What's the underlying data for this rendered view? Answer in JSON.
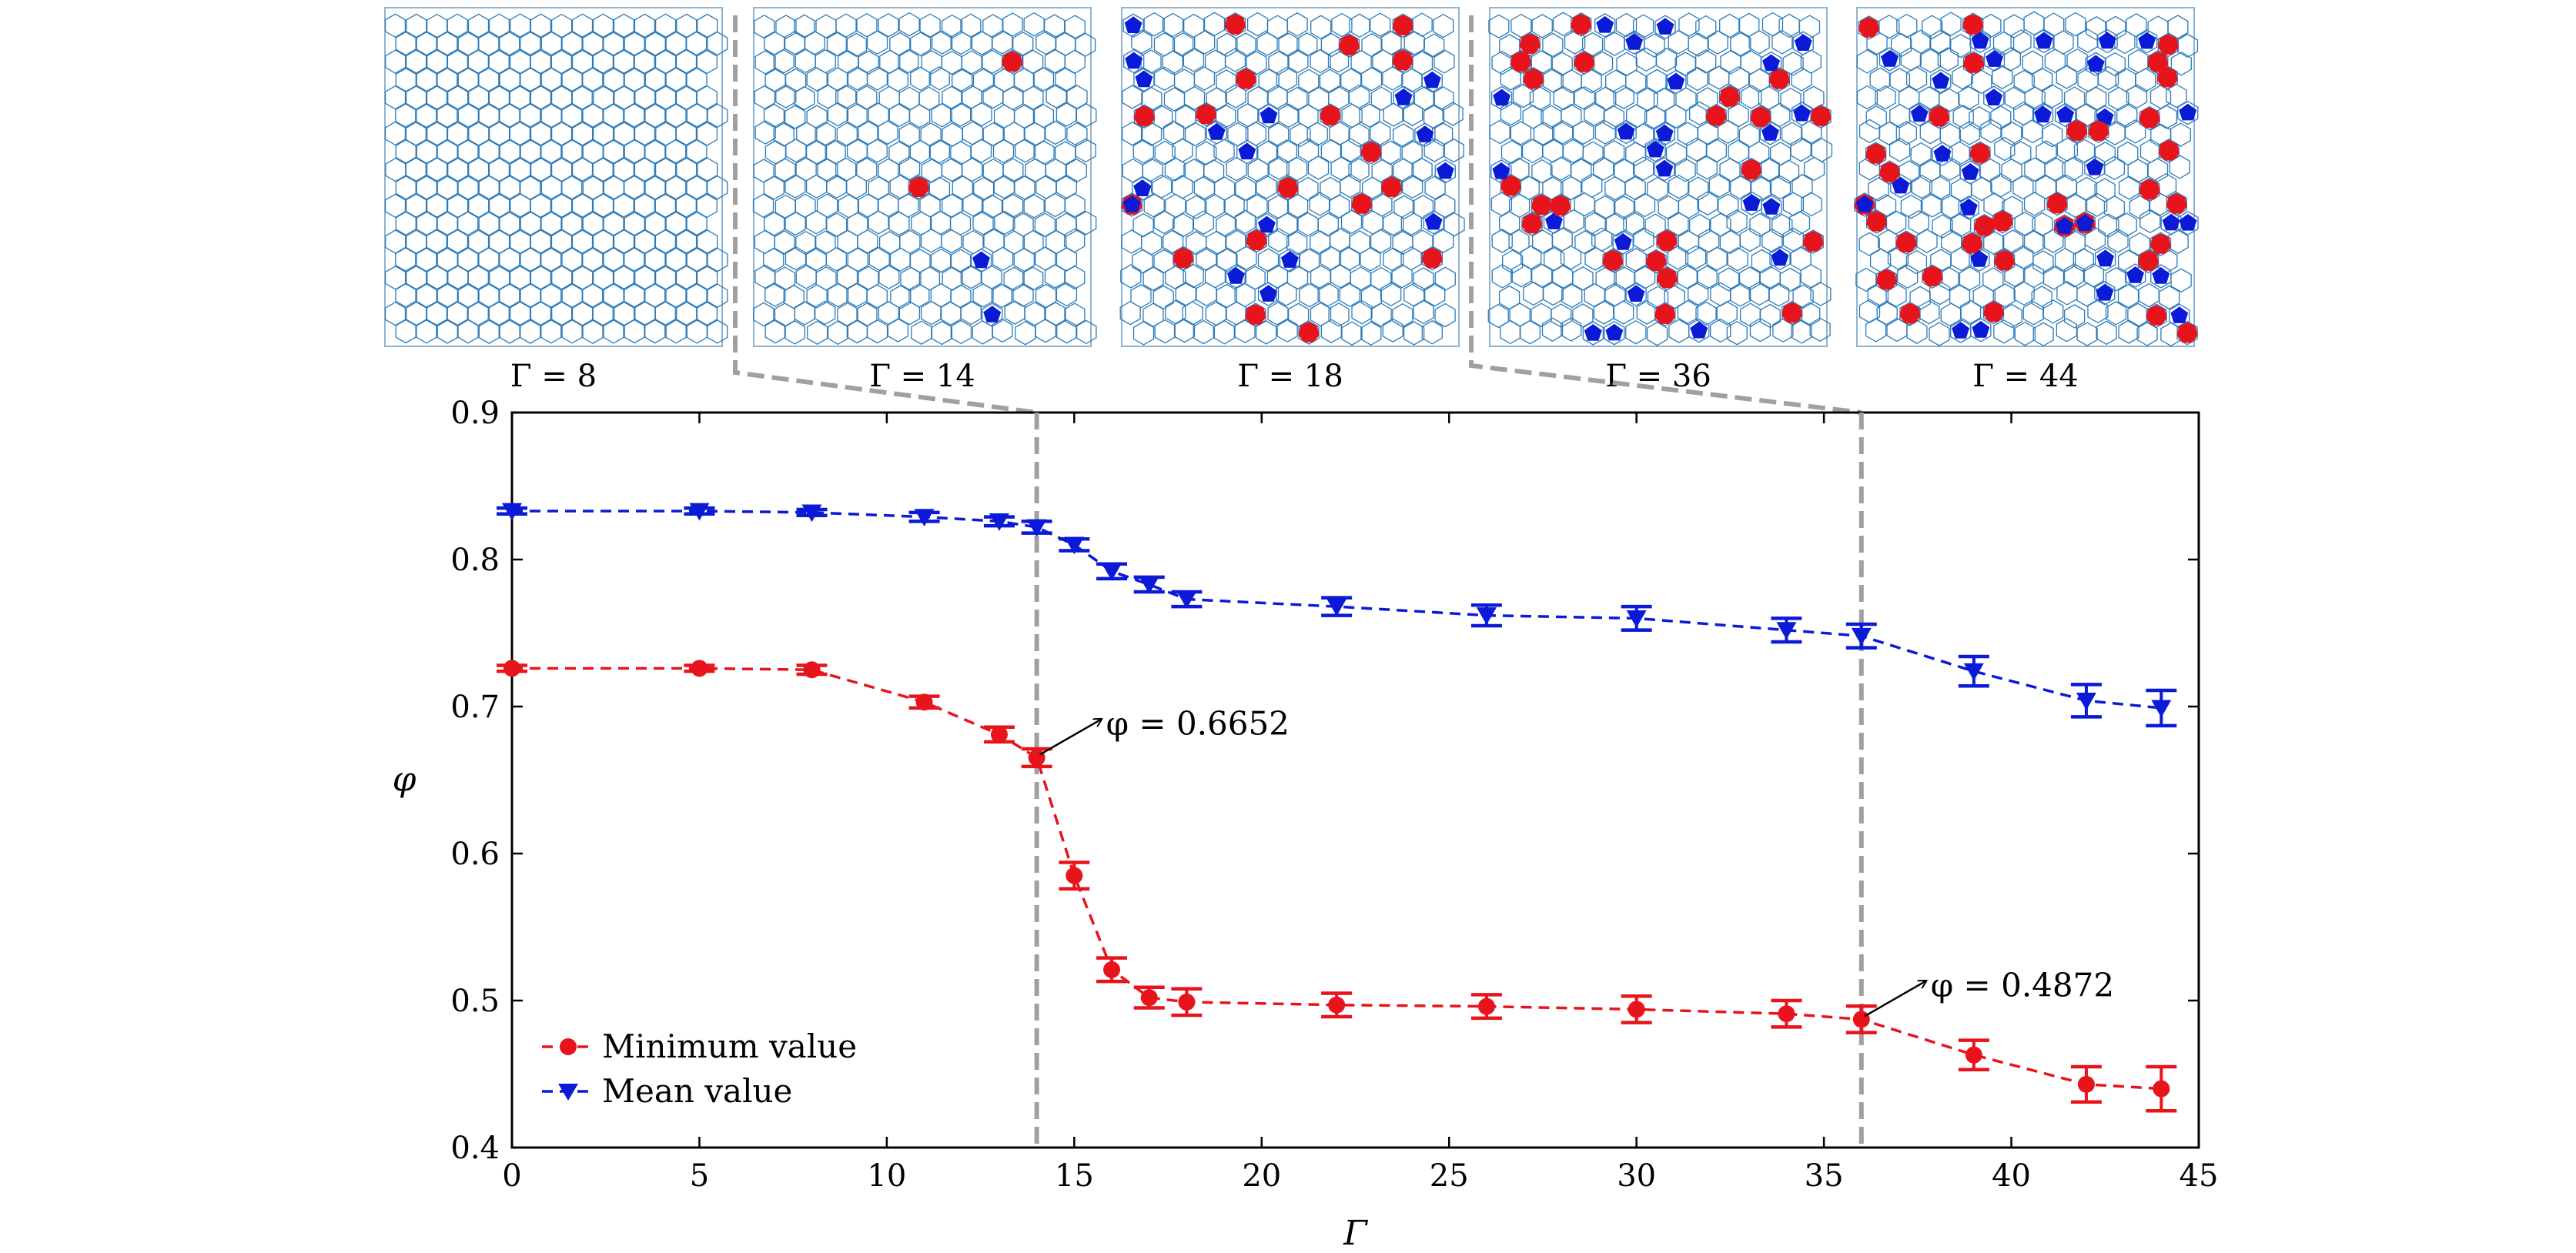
{
  "chart_data": {
    "type": "line",
    "xlabel": "Γ",
    "ylabel": "φ",
    "xlim": [
      0,
      45
    ],
    "ylim": [
      0.4,
      0.9
    ],
    "xticks": [
      "0",
      "5",
      "10",
      "15",
      "20",
      "25",
      "30",
      "35",
      "40",
      "45"
    ],
    "yticks": [
      "0.4",
      "0.5",
      "0.6",
      "0.7",
      "0.8",
      "0.9"
    ],
    "legend_position": "bottom-left",
    "grid": false,
    "series": [
      {
        "name": "Minimum value",
        "color": "#e8141b",
        "marker": "circle",
        "line": "dashed",
        "x": [
          0,
          5,
          8,
          11,
          13,
          14,
          15,
          16,
          17,
          18,
          22,
          26,
          30,
          34,
          36,
          39,
          42,
          44
        ],
        "y": [
          0.726,
          0.726,
          0.725,
          0.703,
          0.681,
          0.6652,
          0.585,
          0.521,
          0.502,
          0.499,
          0.497,
          0.496,
          0.494,
          0.491,
          0.4872,
          0.463,
          0.443,
          0.44
        ],
        "err": [
          0.002,
          0.002,
          0.003,
          0.004,
          0.005,
          0.006,
          0.009,
          0.008,
          0.007,
          0.009,
          0.008,
          0.008,
          0.009,
          0.009,
          0.009,
          0.01,
          0.012,
          0.015
        ]
      },
      {
        "name": "Mean value",
        "color": "#0a1ad6",
        "marker": "triangle-down",
        "line": "dashed",
        "x": [
          0,
          5,
          8,
          11,
          13,
          14,
          15,
          16,
          17,
          18,
          22,
          26,
          30,
          34,
          36,
          39,
          42,
          44
        ],
        "y": [
          0.833,
          0.833,
          0.832,
          0.829,
          0.826,
          0.822,
          0.81,
          0.792,
          0.783,
          0.773,
          0.768,
          0.762,
          0.76,
          0.752,
          0.748,
          0.724,
          0.704,
          0.699
        ],
        "err": [
          0.002,
          0.002,
          0.002,
          0.003,
          0.003,
          0.004,
          0.004,
          0.005,
          0.005,
          0.005,
          0.006,
          0.007,
          0.008,
          0.008,
          0.008,
          0.01,
          0.011,
          0.012
        ]
      }
    ],
    "reference_lines": [
      {
        "x": 14,
        "color": "#a0a0a0",
        "style": "dashed"
      },
      {
        "x": 36,
        "color": "#a0a0a0",
        "style": "dashed"
      }
    ],
    "annotations": [
      {
        "text": "φ = 0.6652",
        "x": 14,
        "y": 0.6652
      },
      {
        "text": "φ = 0.4872",
        "x": 36,
        "y": 0.4872
      }
    ],
    "panels": [
      {
        "label": "Γ = 8",
        "defects": "none"
      },
      {
        "label": "Γ = 14",
        "defects": "few"
      },
      {
        "label": "Γ = 18",
        "defects": "some"
      },
      {
        "label": "Γ = 36",
        "defects": "many"
      },
      {
        "label": "Γ = 44",
        "defects": "most"
      }
    ],
    "panel_colors": {
      "network": "#2b7bba",
      "defect_a": "#e8141b",
      "defect_b": "#0a1ad6"
    }
  }
}
